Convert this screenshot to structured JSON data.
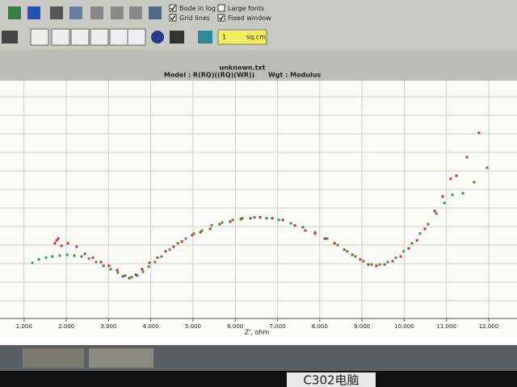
{
  "toolbar": {
    "checkboxes": [
      {
        "label": "Bode in log",
        "checked": true
      },
      {
        "label": "Grid lines",
        "checked": true
      },
      {
        "label": "Large fonts",
        "checked": false
      },
      {
        "label": "Fixed window",
        "checked": true
      }
    ],
    "input_value": "1",
    "unit": "sq.cm"
  },
  "chart_data": {
    "type": "scatter",
    "title": "unknown.txt",
    "subtitle": "Model : R(RQ)((RQ)(WR))      Wgt : Modulus",
    "x_label": "Z', ohm",
    "grid": true,
    "xlim": [
      430,
      12670
    ],
    "ylim": [
      0,
      5600
    ],
    "xticks": [
      {
        "value": 1000,
        "label": "1.000"
      },
      {
        "value": 2000,
        "label": "2.000"
      },
      {
        "value": 3000,
        "label": "3.000"
      },
      {
        "value": 4000,
        "label": "4.000"
      },
      {
        "value": 5000,
        "label": "5.000"
      },
      {
        "value": 6000,
        "label": "6.000"
      },
      {
        "value": 7000,
        "label": "7.000"
      },
      {
        "value": 8000,
        "label": "8.000"
      },
      {
        "value": 9000,
        "label": "9.000"
      },
      {
        "value": 10000,
        "label": "10.000"
      },
      {
        "value": 11000,
        "label": "11.000"
      },
      {
        "value": 12000,
        "label": "12.000"
      }
    ],
    "series": [
      {
        "color": "#2e9a4a",
        "x": [
          1195,
          1350,
          1520,
          1670,
          1845,
          2020,
          2190,
          2360,
          2535,
          2705,
          2880,
          3050,
          3220,
          3395,
          3550,
          3680,
          3815,
          3950,
          4100,
          4255,
          4450,
          4640,
          4830,
          5020,
          5210,
          5440,
          5690,
          5940,
          6170,
          6455,
          6740,
          7030,
          7315,
          7600,
          7890,
          8175,
          8425,
          8650,
          8845,
          9035,
          9230,
          9420,
          9610,
          9800,
          9990,
          10185,
          10375,
          10565,
          10760,
          10950,
          11140,
          11390,
          11655,
          11960
        ],
        "values": [
          1310,
          1390,
          1430,
          1460,
          1480,
          1500,
          1480,
          1460,
          1410,
          1330,
          1240,
          1160,
          1080,
          1010,
          970,
          1010,
          1100,
          1220,
          1330,
          1460,
          1620,
          1770,
          1880,
          2000,
          2070,
          2190,
          2260,
          2320,
          2360,
          2380,
          2360,
          2320,
          2240,
          2150,
          2030,
          1880,
          1730,
          1580,
          1460,
          1350,
          1270,
          1270,
          1330,
          1430,
          1580,
          1770,
          2000,
          2220,
          2470,
          2720,
          2910,
          2950,
          3210,
          3550
        ]
      },
      {
        "color": "#d03030",
        "x": [
          1730,
          1770,
          1810,
          1885,
          2040,
          2245,
          2440,
          2630,
          2820,
          3010,
          3205,
          3340,
          3490,
          3645,
          3795,
          3970,
          4160,
          4350,
          4540,
          4735,
          4980,
          5175,
          5405,
          5630,
          5880,
          6130,
          6360,
          6590,
          6875,
          7125,
          7410,
          7660,
          7890,
          8120,
          8350,
          8580,
          8770,
          8960,
          9150,
          9340,
          9535,
          9725,
          9915,
          10105,
          10300,
          10490,
          10720,
          10910,
          11100,
          11235,
          11485,
          11770
        ],
        "values": [
          1770,
          1840,
          1880,
          1710,
          1770,
          1690,
          1520,
          1430,
          1330,
          1240,
          1140,
          990,
          950,
          1030,
          1160,
          1310,
          1430,
          1580,
          1690,
          1810,
          1960,
          2030,
          2110,
          2220,
          2280,
          2340,
          2360,
          2380,
          2360,
          2320,
          2190,
          2070,
          2000,
          1880,
          1770,
          1620,
          1500,
          1390,
          1270,
          1240,
          1270,
          1350,
          1460,
          1650,
          1840,
          2110,
          2530,
          2870,
          3290,
          3360,
          3800,
          4370
        ]
      }
    ]
  },
  "bezel_label": "C302电脑"
}
